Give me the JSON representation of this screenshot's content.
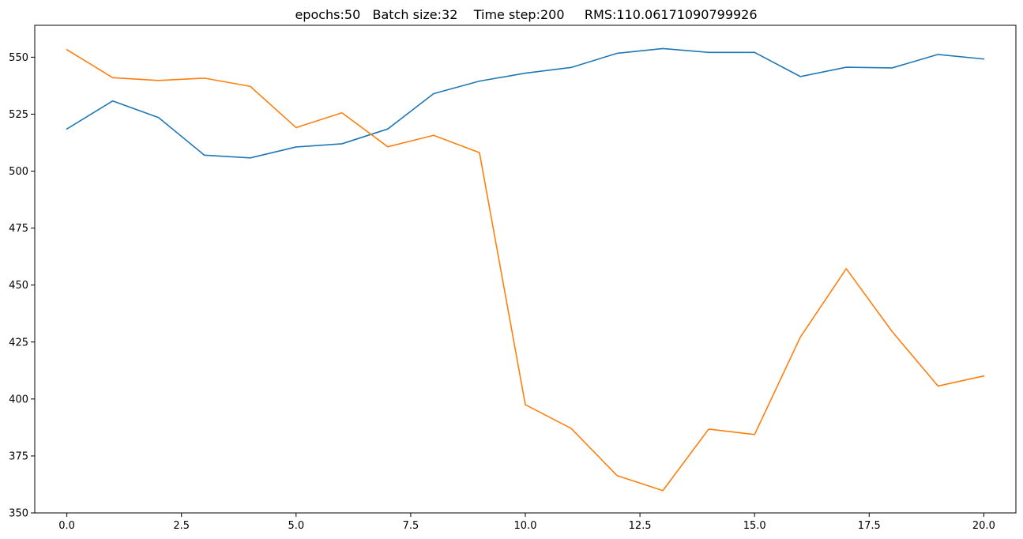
{
  "chart_data": {
    "type": "line",
    "title": "epochs:50   Batch size:32    Time step:200     RMS:110.06171090799926",
    "xlabel": "",
    "ylabel": "",
    "x": [
      0,
      1,
      2,
      3,
      4,
      5,
      6,
      7,
      8,
      9,
      10,
      11,
      12,
      13,
      14,
      15,
      16,
      17,
      18,
      19,
      20
    ],
    "xlim": [
      -0.7,
      20.7
    ],
    "ylim": [
      350,
      564
    ],
    "x_ticks": [
      0.0,
      2.5,
      5.0,
      7.5,
      10.0,
      12.5,
      15.0,
      17.5,
      20.0
    ],
    "x_tick_labels": [
      "0.0",
      "2.5",
      "5.0",
      "7.5",
      "10.0",
      "12.5",
      "15.0",
      "17.5",
      "20.0"
    ],
    "y_ticks": [
      350,
      375,
      400,
      425,
      450,
      475,
      500,
      525,
      550
    ],
    "y_tick_labels": [
      "350",
      "375",
      "400",
      "425",
      "450",
      "475",
      "500",
      "525",
      "550"
    ],
    "grid": false,
    "legend": "none",
    "series": [
      {
        "color": "#1f77b4",
        "values": [
          518.5,
          530.8,
          523.5,
          507.0,
          505.8,
          510.6,
          512.0,
          518.5,
          534.0,
          539.5,
          543.0,
          545.5,
          551.7,
          553.8,
          552.1,
          552.1,
          541.5,
          545.6,
          545.3,
          551.2,
          549.2
        ]
      },
      {
        "color": "#ff7f0e",
        "values": [
          553.3,
          541.0,
          539.8,
          540.8,
          537.2,
          519.1,
          525.6,
          510.7,
          515.7,
          508.1,
          397.5,
          387.1,
          366.4,
          359.8,
          386.8,
          384.4,
          427.2,
          457.2,
          429.6,
          405.7,
          410.1
        ]
      }
    ]
  }
}
